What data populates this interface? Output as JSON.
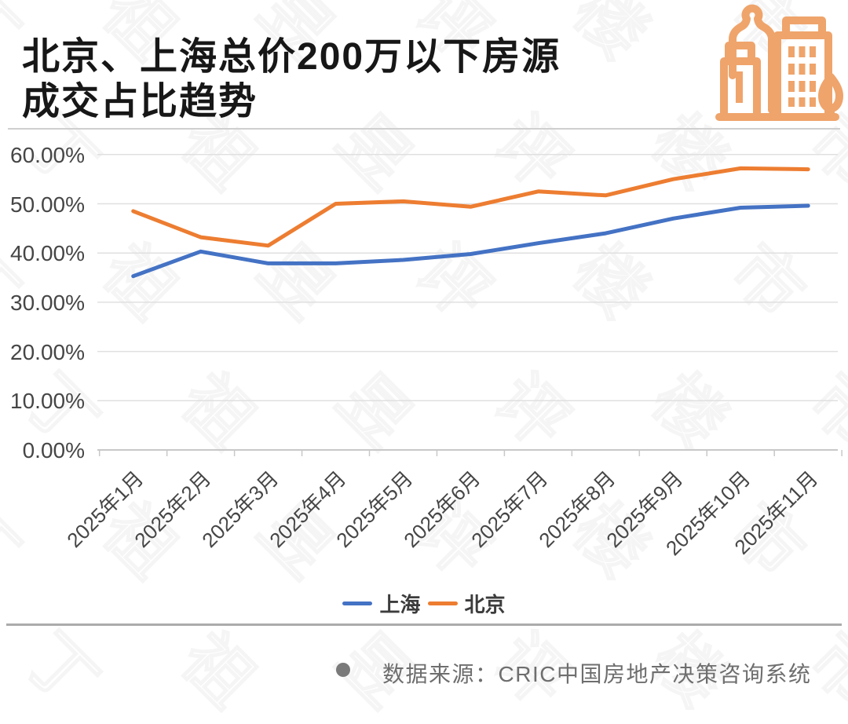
{
  "header": {
    "title_line1": "北京、上海总价200万以下房源",
    "title_line2": "成交占比趋势",
    "icon": "city-buildings-icon",
    "icon_color": "#EFA46B"
  },
  "chart_data": {
    "type": "line",
    "title": "北京、上海总价200万以下房源成交占比趋势",
    "categories": [
      "2025年1月",
      "2025年2月",
      "2025年3月",
      "2025年4月",
      "2025年5月",
      "2025年6月",
      "2025年7月",
      "2025年8月",
      "2025年9月",
      "2025年10月",
      "2025年11月"
    ],
    "series": [
      {
        "name": "上海",
        "color": "#4472C4",
        "values": [
          35.3,
          40.3,
          37.9,
          37.9,
          38.6,
          39.8,
          42.0,
          44.0,
          47.0,
          49.2,
          49.6
        ]
      },
      {
        "name": "北京",
        "color": "#ED7D31",
        "values": [
          48.5,
          43.2,
          41.5,
          50.0,
          50.5,
          49.4,
          52.5,
          51.7,
          55.0,
          57.2,
          57.0
        ]
      }
    ],
    "xlabel": "",
    "ylabel": "",
    "ylim": [
      0,
      60
    ],
    "y_ticks": [
      {
        "value": 60,
        "label": "60.00%"
      },
      {
        "value": 50,
        "label": "50.00%"
      },
      {
        "value": 40,
        "label": "40.00%"
      },
      {
        "value": 30,
        "label": "30.00%"
      },
      {
        "value": 20,
        "label": "20.00%"
      },
      {
        "value": 10,
        "label": "10.00%"
      },
      {
        "value": 0,
        "label": "0.00%"
      }
    ],
    "grid": true,
    "legend_position": "bottom",
    "grid_color": "#e0e0e0",
    "axis_color": "#c8c8c8"
  },
  "footer": {
    "bullet": "●",
    "source_text": "数据来源：CRIC中国房地产决策咨询系统"
  },
  "watermark": {
    "text": "丁祖昱评楼市"
  }
}
